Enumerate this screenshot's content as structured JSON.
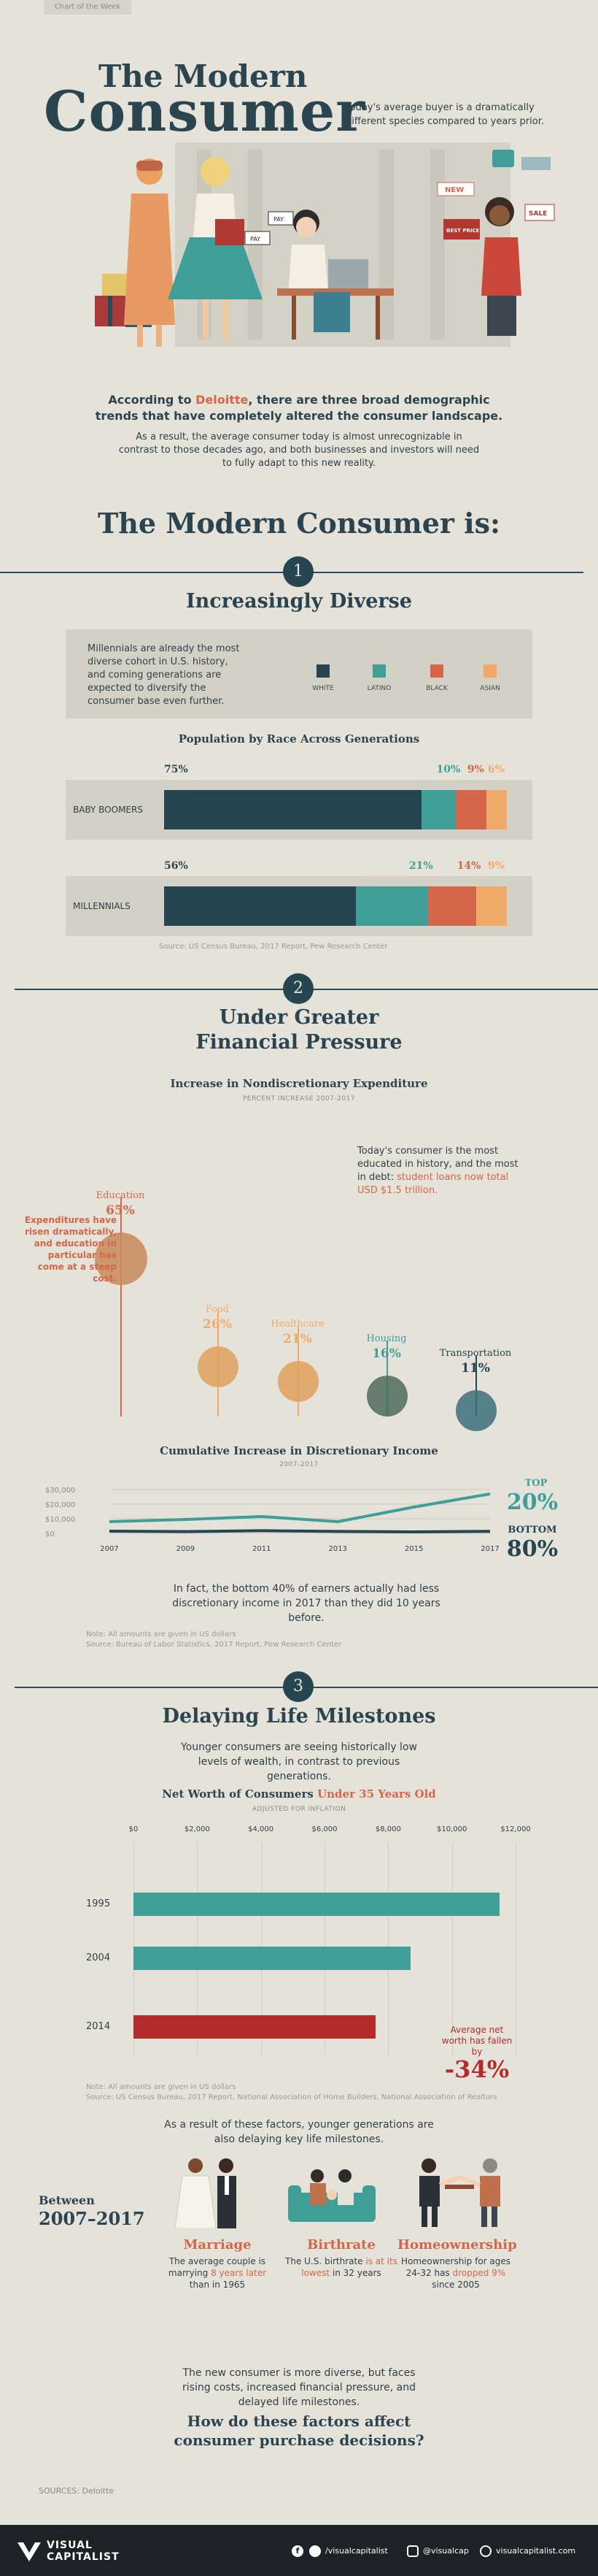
{
  "header": {
    "tab_label": "Chart of the Week",
    "title_line1": "The Modern",
    "title_line2": "Consumer",
    "tagline": "Today's average buyer is a dramatically different species compared to years prior."
  },
  "illustration": {
    "tag_new": "NEW",
    "tag_best_price": "BEST PRICE",
    "tag_sale": "SALE",
    "tag_pay_1": "PAY",
    "tag_pay_2": "PAY"
  },
  "intro": {
    "lead_prefix": "According to",
    "lead_source": "Deloitte",
    "lead_suffix": ", there are three broad demographic trends that have completely altered the consumer landscape.",
    "body": "As a result, the average consumer today is almost unrecognizable in contrast to those decades ago, and both businesses and investors will need to fully adapt to this new reality."
  },
  "main_heading": "The Modern Consumer is:",
  "section1": {
    "number": "1",
    "heading": "Increasingly Diverse",
    "blurb": "Millennials are already the most diverse cohort in U.S. history, and coming generations are expected to diversify the consumer base even further.",
    "legend": [
      {
        "label": "WHITE",
        "color": "#254550"
      },
      {
        "label": "LATINO",
        "color": "#3f9f98"
      },
      {
        "label": "BLACK",
        "color": "#d5664a"
      },
      {
        "label": "ASIAN",
        "color": "#f1a96a"
      }
    ],
    "chart_title": "Population by Race Across Generations",
    "source": "Source: US Census Bureau, 2017 Report, Pew Research Center"
  },
  "section2": {
    "number": "2",
    "heading_line1": "Under Greater",
    "heading_line2": "Financial Pressure",
    "chart1_title": "Increase in Nondiscretionary Expenditure",
    "chart1_sub": "PERCENT INCREASE 2007-2017",
    "callout_left": "Expenditures have risen dramatically, and education in particular has come at a steep cost.",
    "callout_right_prefix": "Today's consumer is the most educated in history, and the most in debt: ",
    "callout_right_highlight": "student loans now total USD $1.5 trillion.",
    "chart2_title": "Cumulative Increase in Discretionary Income",
    "chart2_sub": "2007-2017",
    "top_label": "TOP",
    "top_value": "20%",
    "bottom_label": "BOTTOM",
    "bottom_value": "80%",
    "fact": "In fact, the bottom 40% of earners actually had less discretionary income in 2017 than they did 10 years before.",
    "note": "Note: All amounts are given in US dollars",
    "source": "Source: Bureau of Labor Statistics, 2017 Report, Pew Research Center"
  },
  "section3": {
    "number": "3",
    "heading": "Delaying Life Milestones",
    "blurb": "Younger consumers are seeing historically low levels of wealth, in contrast to previous generations.",
    "chart_title_prefix": "Net Worth of Consumers",
    "chart_title_highlight": "Under 35 Years Old",
    "chart_sub": "ADJUSTED FOR INFLATION",
    "callout_text": "Average net worth has fallen by",
    "callout_value": "-34%",
    "note": "Note: All amounts are given in US dollars",
    "source": "Source: US Census Bureau, 2017 Report, National Association of Home Builders, National Association of Realtors",
    "milestones_intro": "As a result of these factors, younger generations are also delaying key life milestones.",
    "between_label": "Between",
    "between_years": "2007–2017",
    "milestones": [
      {
        "title": "Marriage",
        "text_prefix": "The average couple is marrying ",
        "text_highlight": "8 years later",
        "text_suffix": " than in 1965"
      },
      {
        "title": "Birthrate",
        "text_prefix": "The U.S. birthrate ",
        "text_highlight": "is at its lowest",
        "text_suffix": " in 32 years"
      },
      {
        "title": "Homeownership",
        "text_prefix": "Homeownership for ages 24-32 has ",
        "text_highlight": "dropped 9%",
        "text_suffix": " since 2005"
      }
    ],
    "closing": "The new consumer is more diverse, but faces rising costs, increased financial pressure, and delayed life milestones.",
    "question": "How do these factors affect consumer purchase decisions?"
  },
  "sources_line": "SOURCES: Deloitte",
  "footer": {
    "brand_line1": "VISUAL",
    "brand_line2": "CAPITALIST",
    "handle_fb": "/visualcapitalist",
    "handle_tw": "@visualcap",
    "site": "visualcapitalist.com"
  },
  "chart_data": [
    {
      "type": "bar",
      "title": "Population by Race Across Generations",
      "categories": [
        "BABY BOOMERS",
        "MILLENNIALS"
      ],
      "series": [
        {
          "name": "WHITE",
          "values": [
            75,
            56
          ],
          "color": "#254550"
        },
        {
          "name": "LATINO",
          "values": [
            10,
            21
          ],
          "color": "#3f9f98"
        },
        {
          "name": "BLACK",
          "values": [
            9,
            14
          ],
          "color": "#d5664a"
        },
        {
          "name": "ASIAN",
          "values": [
            6,
            9
          ],
          "color": "#f1a96a"
        }
      ],
      "stacked": true
    },
    {
      "type": "bar",
      "title": "Increase in Nondiscretionary Expenditure",
      "categories": [
        "Education",
        "Food",
        "Healthcare",
        "Housing",
        "Transportation"
      ],
      "values": [
        65,
        26,
        21,
        16,
        11
      ],
      "labels": [
        "65%",
        "26%",
        "21%",
        "16%",
        "11%"
      ]
    },
    {
      "type": "line",
      "title": "Cumulative Increase in Discretionary Income",
      "x": [
        2007,
        2009,
        2011,
        2013,
        2015,
        2017
      ],
      "xlabels": [
        "2007",
        "2009",
        "2011",
        "2013",
        "2015",
        "2017"
      ],
      "ytick_labels": [
        "$30,000",
        "$20,000",
        "$10,000",
        "$0"
      ],
      "ylim": [
        0,
        30000
      ],
      "series": [
        {
          "name": "TOP 20%",
          "values": [
            8000,
            9500,
            11500,
            8000,
            18000,
            27000
          ],
          "color": "#3f9f98"
        },
        {
          "name": "BOTTOM 80%",
          "values": [
            1500,
            1200,
            1800,
            1300,
            1000,
            1400
          ],
          "color": "#254550"
        }
      ]
    },
    {
      "type": "bar",
      "title": "Net Worth of Consumers Under 35 Years Old",
      "categories": [
        "1995",
        "2004",
        "2014"
      ],
      "values": [
        11500,
        8700,
        7600
      ],
      "xtick_labels": [
        "$0",
        "$2,000",
        "$4,000",
        "$6,000",
        "$8,000",
        "$10,000",
        "$12,000"
      ],
      "xlim": [
        0,
        12000
      ],
      "colors": [
        "#3f9f98",
        "#3f9f98",
        "#b32b2b"
      ]
    }
  ]
}
